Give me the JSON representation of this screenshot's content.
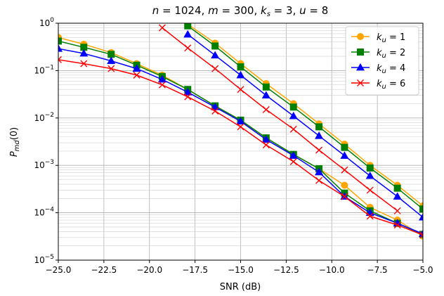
{
  "chart_data": {
    "type": "line",
    "title": "n = 1024, m = 300, k_s = 3, u = 8",
    "title_parts": {
      "n_var": "n",
      "n_val": "1024",
      "m_var": "m",
      "m_val": "300",
      "ks_var": "k",
      "ks_sub": "s",
      "ks_val": "3",
      "u_var": "u",
      "u_val": "8"
    },
    "xlabel": "SNR (dB)",
    "ylabel": "P_md(0)",
    "ylabel_parts": {
      "base": "P",
      "sub": "md",
      "rest": "(0)"
    },
    "xlim": [
      -25,
      -5
    ],
    "ylim": [
      1e-05,
      1
    ],
    "yscale": "log",
    "grid": true,
    "legend_position": "top-right",
    "x_ticks": [
      "−25.0",
      "−22.5",
      "−20.0",
      "−17.5",
      "−15.0",
      "−12.5",
      "−10.0",
      "−7.5",
      "−5.0"
    ],
    "y_ticks": [
      {
        "base": "10",
        "exp": "0"
      },
      {
        "base": "10",
        "exp": "−1"
      },
      {
        "base": "10",
        "exp": "−2"
      },
      {
        "base": "10",
        "exp": "−3"
      },
      {
        "base": "10",
        "exp": "−4"
      },
      {
        "base": "10",
        "exp": "−5"
      }
    ],
    "series": [
      {
        "name": "k_u = 1",
        "legend_var": "k",
        "legend_sub": "u",
        "legend_val": "= 1",
        "color": "#FFA500",
        "marker": "circle",
        "x": [
          -25,
          -23.6,
          -22.1,
          -20.7,
          -19.3,
          -17.9,
          -16.4,
          -15.0,
          -13.6,
          -12.1,
          -10.7,
          -9.3,
          -7.9,
          -6.4,
          -5.0
        ],
        "y": [
          0.5,
          0.36,
          0.24,
          0.14,
          0.08,
          0.04,
          0.018,
          0.009,
          0.0038,
          0.0017,
          0.00085,
          0.00038,
          0.00013,
          7e-05,
          3.2e-05
        ]
      },
      {
        "name": "k_u = 2",
        "legend_var": "k",
        "legend_sub": "u",
        "legend_val": "= 2",
        "color": "#008000",
        "marker": "square",
        "x": [
          -25,
          -23.6,
          -22.1,
          -20.7,
          -19.3,
          -17.9,
          -16.4,
          -15.0,
          -13.6,
          -12.1,
          -10.7,
          -9.3,
          -7.9,
          -6.4,
          -5.0
        ],
        "y": [
          0.42,
          0.31,
          0.22,
          0.13,
          0.075,
          0.04,
          0.018,
          0.009,
          0.0038,
          0.0017,
          0.00085,
          0.00026,
          0.00011,
          6e-05,
          3.5e-05
        ]
      },
      {
        "name": "k_u = 4",
        "legend_var": "k",
        "legend_sub": "u",
        "legend_val": "= 4",
        "color": "#0000FF",
        "marker": "triangle",
        "x": [
          -25,
          -23.6,
          -22.1,
          -20.7,
          -19.3,
          -17.9,
          -16.4,
          -15.0,
          -13.6,
          -12.1,
          -10.7,
          -9.3,
          -7.9,
          -6.4,
          -5.0
        ],
        "y": [
          0.29,
          0.23,
          0.16,
          0.11,
          0.065,
          0.035,
          0.017,
          0.0085,
          0.0035,
          0.0016,
          0.00072,
          0.00022,
          0.0001,
          6e-05,
          3.6e-05
        ]
      },
      {
        "name": "k_u = 6",
        "legend_var": "k",
        "legend_sub": "u",
        "legend_val": "= 6",
        "color": "#FF0000",
        "marker": "x",
        "x": [
          -25,
          -23.6,
          -22.1,
          -20.7,
          -19.3,
          -17.9,
          -16.4,
          -15.0,
          -13.6,
          -12.1,
          -10.7,
          -9.3,
          -7.9,
          -6.4,
          -5.0
        ],
        "y": [
          0.17,
          0.14,
          0.11,
          0.08,
          0.05,
          0.028,
          0.014,
          0.0065,
          0.0027,
          0.0012,
          0.00048,
          0.00022,
          8.5e-05,
          5.5e-05,
          3.4e-05
        ]
      },
      {
        "name": "k_u = 1 (upper)",
        "color": "#FFA500",
        "marker": "circle",
        "x": [
          -17.9,
          -16.4,
          -15.0,
          -13.6,
          -12.1,
          -10.7,
          -9.3,
          -7.9,
          -6.4,
          -5.0
        ],
        "y": [
          0.95,
          0.38,
          0.14,
          0.053,
          0.02,
          0.0075,
          0.0028,
          0.001,
          0.00038,
          0.00014
        ]
      },
      {
        "name": "k_u = 2 (upper)",
        "color": "#008000",
        "marker": "square",
        "x": [
          -17.9,
          -16.4,
          -15.0,
          -13.6,
          -12.1,
          -10.7,
          -9.3,
          -7.9,
          -6.4,
          -5.0
        ],
        "y": [
          0.88,
          0.33,
          0.12,
          0.045,
          0.017,
          0.0065,
          0.0024,
          0.00088,
          0.00033,
          0.00012
        ]
      },
      {
        "name": "k_u = 4 (upper)",
        "color": "#0000FF",
        "marker": "triangle",
        "x": [
          -17.9,
          -16.4,
          -15.0,
          -13.6,
          -12.1,
          -10.7,
          -9.3,
          -7.9,
          -6.4,
          -5.0
        ],
        "y": [
          0.58,
          0.21,
          0.08,
          0.03,
          0.011,
          0.0042,
          0.0016,
          0.0006,
          0.00022,
          8e-05
        ]
      },
      {
        "name": "k_u = 6 (upper)",
        "color": "#FF0000",
        "marker": "x",
        "x": [
          -19.3,
          -17.9,
          -16.4,
          -15.0,
          -13.6,
          -12.1,
          -10.7,
          -9.3,
          -7.9,
          -6.4
        ],
        "y": [
          0.8,
          0.3,
          0.11,
          0.04,
          0.015,
          0.0058,
          0.0021,
          0.0008,
          0.0003,
          0.00011
        ]
      }
    ]
  }
}
